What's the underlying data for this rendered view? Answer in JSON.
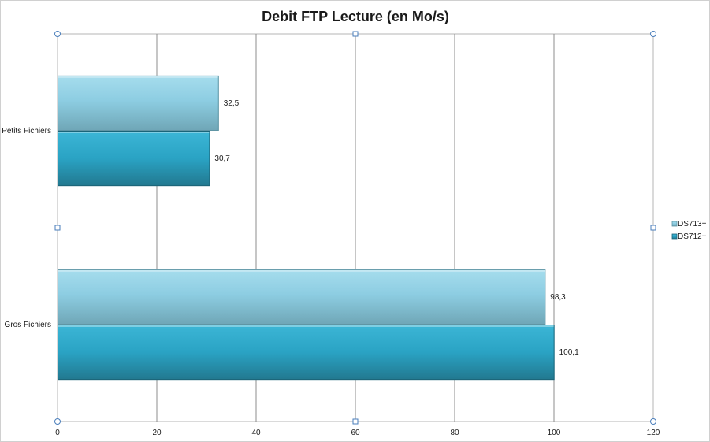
{
  "chart_data": {
    "type": "bar",
    "orientation": "horizontal",
    "title": "Debit FTP Lecture (en Mo/s)",
    "xlabel": "",
    "ylabel": "",
    "categories": [
      "Petits Fichiers",
      "Gros Fichiers"
    ],
    "series": [
      {
        "name": "DS713+",
        "values": [
          32.5,
          98.3
        ],
        "labels": [
          "32,5",
          "98,3"
        ],
        "color": "#8fd0e3"
      },
      {
        "name": "DS712+",
        "values": [
          30.7,
          100.1
        ],
        "labels": [
          "30,7",
          "100,1"
        ],
        "color": "#2ea4c4"
      }
    ],
    "xlim": [
      0,
      120
    ],
    "xticks": [
      0,
      20,
      40,
      60,
      80,
      100,
      120
    ],
    "xtick_labels": [
      "0",
      "20",
      "40",
      "60",
      "80",
      "100",
      "120"
    ],
    "grid": "vertical",
    "legend": "right"
  }
}
